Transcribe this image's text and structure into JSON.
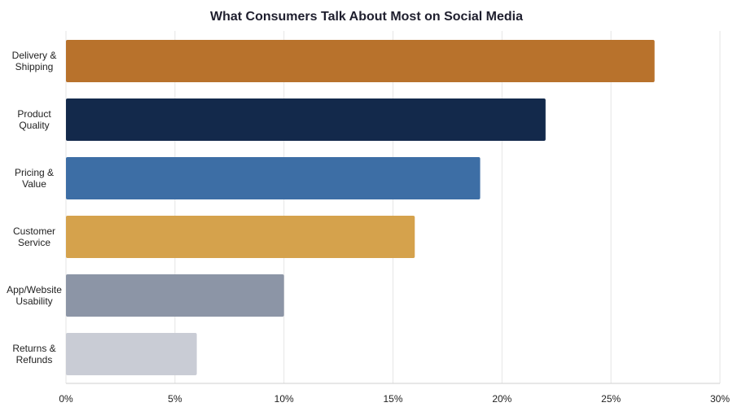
{
  "chart_data": {
    "type": "bar",
    "orientation": "horizontal",
    "title": "What Consumers Talk About Most on Social Media",
    "xlabel": "",
    "ylabel": "",
    "xlim": [
      0,
      30
    ],
    "x_ticks": [
      0,
      5,
      10,
      15,
      20,
      25,
      30
    ],
    "x_tick_labels": [
      "0%",
      "5%",
      "10%",
      "15%",
      "20%",
      "25%",
      "30%"
    ],
    "grid": "vertical",
    "categories": [
      [
        "Delivery &",
        "Shipping"
      ],
      [
        "Product",
        "Quality"
      ],
      [
        "Pricing &",
        "Value"
      ],
      [
        "Customer",
        "Service"
      ],
      [
        "App/Website",
        "Usability"
      ],
      [
        "Returns &",
        "Refunds"
      ]
    ],
    "values": [
      27,
      22,
      19,
      16,
      10,
      6
    ],
    "colors": [
      "#b8722c",
      "#13294b",
      "#3d6ea5",
      "#d5a24c",
      "#8c95a6",
      "#c9ccd5"
    ]
  }
}
